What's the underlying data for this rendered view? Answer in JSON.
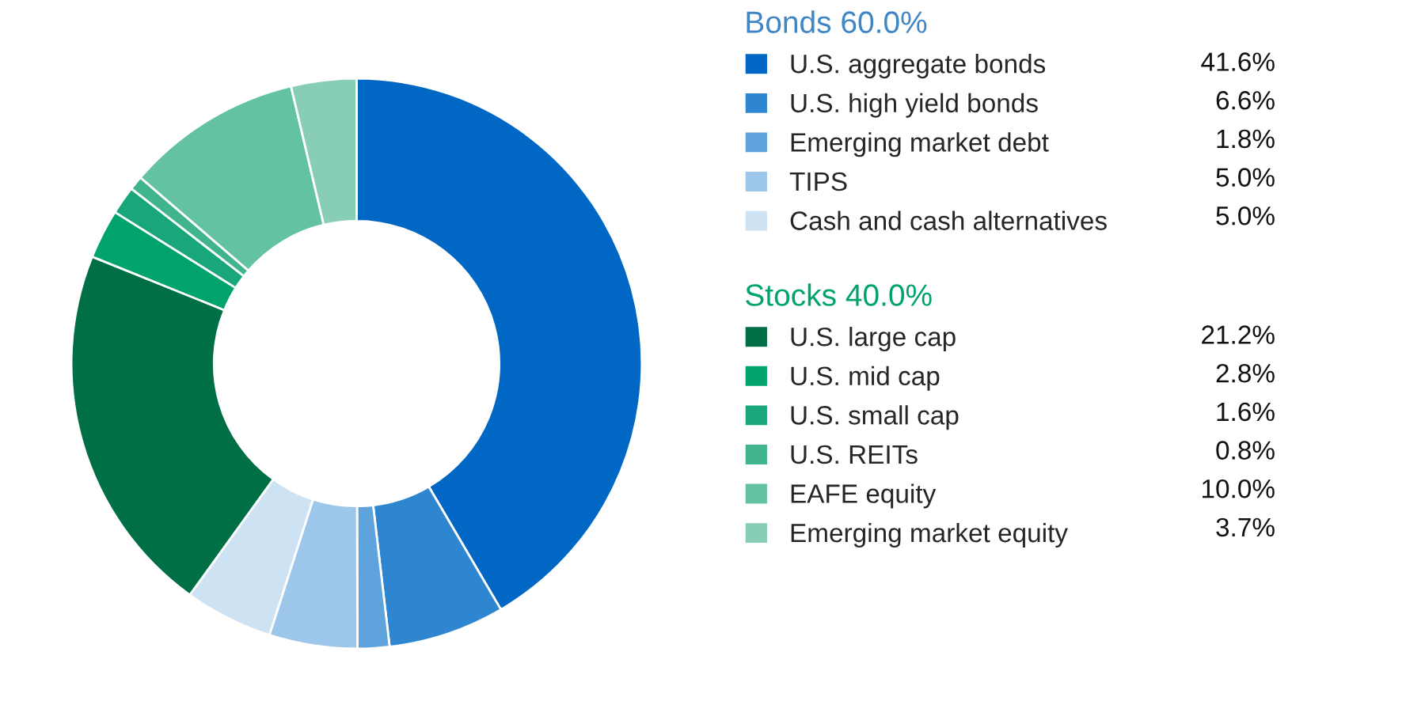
{
  "chart_data": {
    "type": "donut",
    "categories": [
      "U.S. aggregate bonds",
      "U.S. high yield bonds",
      "Emerging market debt",
      "TIPS",
      "Cash and cash alternatives",
      "U.S. large cap",
      "U.S. mid cap",
      "U.S. small cap",
      "U.S. REITs",
      "EAFE equity",
      "Emerging market equity"
    ],
    "values": [
      41.6,
      6.6,
      1.8,
      5.0,
      5.0,
      21.2,
      2.8,
      1.6,
      0.8,
      10.0,
      3.7
    ],
    "colors": [
      "#0067c5",
      "#2e86d0",
      "#5fa3dd",
      "#9cc7ea",
      "#cde3f4",
      "#006f45",
      "#00a36b",
      "#1aa67b",
      "#40b58c",
      "#63c2a0",
      "#88ceb6"
    ],
    "value_labels": [
      "41.6%",
      "6.6%",
      "1.8%",
      "5.0%",
      "5.0%",
      "21.2%",
      "2.8%",
      "1.6%",
      "0.8%",
      "10.0%",
      "3.7%"
    ],
    "annotations": [
      {
        "text": "Bonds 60.0%",
        "x": "U.S. aggregate bonds"
      },
      {
        "text": "Stocks 40.0%",
        "x": "U.S. large cap"
      }
    ],
    "legend": "right"
  }
}
